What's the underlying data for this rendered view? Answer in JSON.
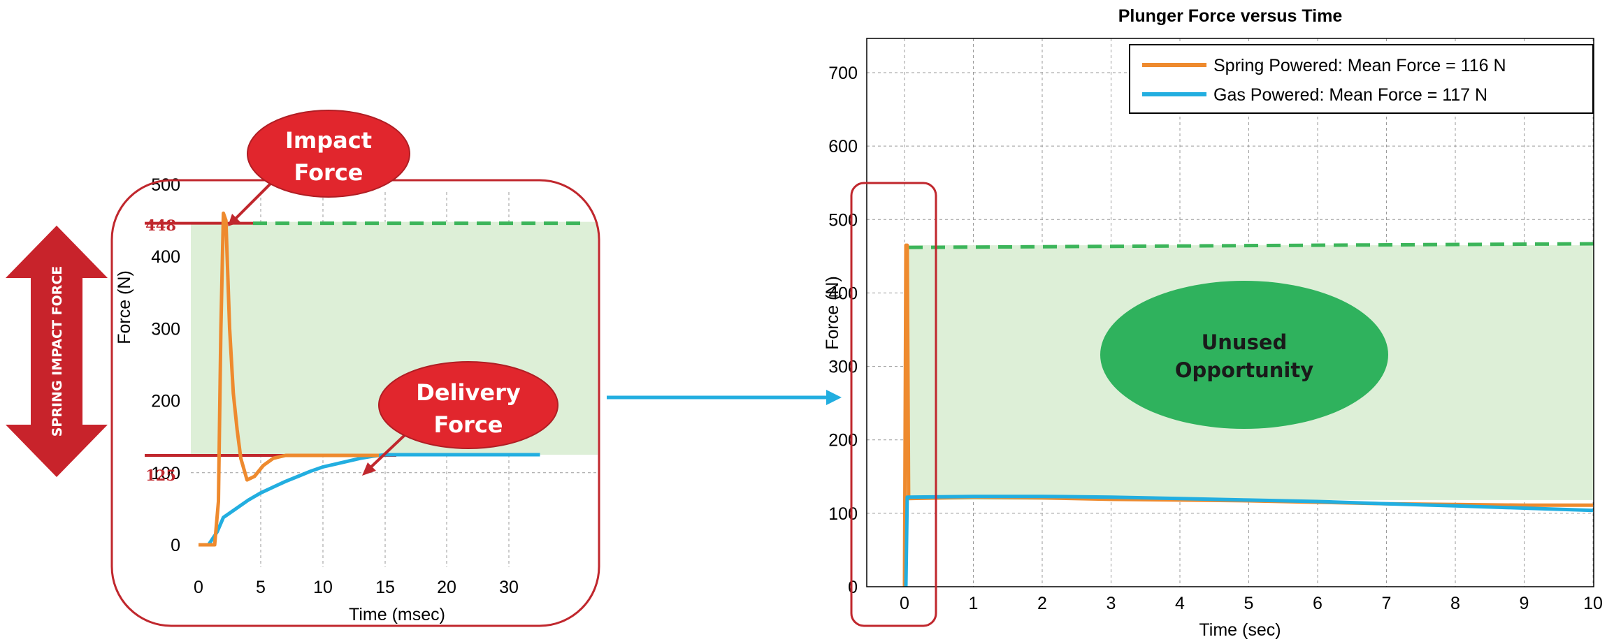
{
  "left_chart": {
    "ylabel": "Force (N)",
    "xlabel": "Time (msec)",
    "x_ticks": [
      "0",
      "5",
      "10",
      "15",
      "20",
      "30"
    ],
    "y_ticks": [
      "0",
      "100",
      "200",
      "300",
      "400",
      "500"
    ],
    "marker_impact": "448",
    "marker_delivery": "125",
    "callout_impact_line1": "Impact",
    "callout_impact_line2": "Force",
    "callout_delivery_line1": "Delivery",
    "callout_delivery_line2": "Force",
    "arrow_label": "SPRING IMPACT FORCE"
  },
  "right_chart": {
    "title": "Plunger Force versus Time",
    "ylabel": "Force (N)",
    "xlabel": "Time (sec)",
    "x_ticks": [
      "0",
      "1",
      "2",
      "3",
      "4",
      "5",
      "6",
      "7",
      "8",
      "9",
      "10"
    ],
    "y_ticks": [
      "0",
      "100",
      "200",
      "300",
      "400",
      "500",
      "600",
      "700"
    ],
    "legend_spring": "Spring Powered: Mean Force = 116 N",
    "legend_gas": "Gas Powered: Mean Force = 117 N",
    "ellipse_line1": "Unused",
    "ellipse_line2": "Opportunity"
  },
  "colors": {
    "spring": "#EE8A2E",
    "gas": "#22AEE0",
    "dashed": "#3CB55A",
    "fill": "#DDEFD7",
    "callout": "#E1262D",
    "frame": "#C0272D",
    "ellipse": "#2FB25D",
    "link_arrow": "#22AEE0"
  },
  "chart_data": [
    {
      "type": "line",
      "title": "",
      "xlabel": "Time (msec)",
      "ylabel": "Force (N)",
      "xlim": [
        -1,
        35
      ],
      "ylim": [
        0,
        520
      ],
      "grid": true,
      "reference_lines": [
        {
          "label": "448",
          "y": 448
        },
        {
          "label": "125",
          "y": 125
        }
      ],
      "series": [
        {
          "x": [
            0,
            1,
            1.3,
            1.6,
            1.8,
            2.0,
            2.2,
            2.5,
            2.8,
            3.1,
            3.4,
            3.9,
            4.5,
            5.2,
            6,
            7,
            9,
            11,
            13,
            14.5
          ],
          "y": [
            0,
            0,
            0,
            60,
            300,
            460,
            450,
            300,
            210,
            160,
            120,
            90,
            95,
            110,
            120,
            124,
            124,
            124,
            124,
            124
          ]
        },
        {
          "x": [
            0,
            0.8,
            1,
            1.5,
            2,
            3,
            4,
            5,
            6,
            7,
            8,
            9,
            10,
            11,
            12,
            13,
            14,
            15,
            20,
            25,
            30,
            35
          ],
          "y": [
            0,
            0,
            5,
            18,
            38,
            50,
            62,
            72,
            80,
            88,
            95,
            102,
            108,
            112,
            116,
            120,
            123,
            125,
            125,
            125,
            125,
            125
          ]
        }
      ]
    },
    {
      "type": "line",
      "title": "Plunger Force versus Time",
      "xlabel": "Time (sec)",
      "ylabel": "Force (N)",
      "xlim": [
        0,
        10
      ],
      "ylim": [
        0,
        750
      ],
      "grid": true,
      "legend": "top-right",
      "series": [
        {
          "name": "Spring Powered: Mean Force = 116 N",
          "x": [
            0,
            0.02,
            0.04,
            0.06,
            1,
            2,
            3,
            4,
            5,
            6,
            7,
            8,
            9,
            10
          ],
          "y": [
            0,
            465,
            465,
            120,
            122,
            121,
            119,
            118,
            117,
            115,
            113,
            112,
            111,
            111
          ]
        },
        {
          "name": "Gas Powered: Mean Force = 117 N",
          "x": [
            0,
            0.02,
            0.04,
            1,
            2,
            3,
            4,
            5,
            6,
            7,
            8,
            9,
            10
          ],
          "y": [
            0,
            0,
            122,
            123,
            123,
            122,
            120,
            118,
            116,
            113,
            110,
            107,
            104
          ]
        }
      ]
    }
  ]
}
